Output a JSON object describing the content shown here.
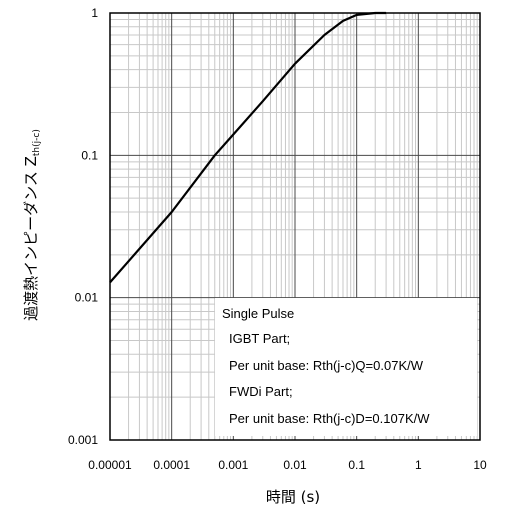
{
  "chart_data": {
    "type": "line",
    "x_scale": "log",
    "y_scale": "log",
    "xlim": [
      1e-05,
      10
    ],
    "ylim": [
      0.001,
      1
    ],
    "grid": true,
    "xlabel": "時間 (s)",
    "ylabel_main": "過渡熱インピーダンス Z",
    "ylabel_sub": "th(j-c)",
    "x_ticks": [
      "0.00001",
      "0.0001",
      "0.001",
      "0.01",
      "0.1",
      "1",
      "10"
    ],
    "y_ticks": [
      "0.001",
      "0.01",
      "0.1",
      "1"
    ],
    "series": [
      {
        "x": [
          1e-05,
          0.0001,
          0.0005,
          0.001,
          0.003,
          0.01,
          0.03,
          0.06,
          0.1,
          0.2,
          0.3
        ],
        "y": [
          0.0128,
          0.04,
          0.1,
          0.14,
          0.24,
          0.44,
          0.7,
          0.88,
          0.97,
          1.0,
          1.0
        ]
      }
    ],
    "annotation": {
      "lines": [
        "Single Pulse",
        "IGBT Part;",
        "Per unit base: Rth(j-c)Q=0.07K/W",
        "FWDi Part;",
        "Per unit base: Rth(j-c)D=0.107K/W"
      ]
    }
  }
}
